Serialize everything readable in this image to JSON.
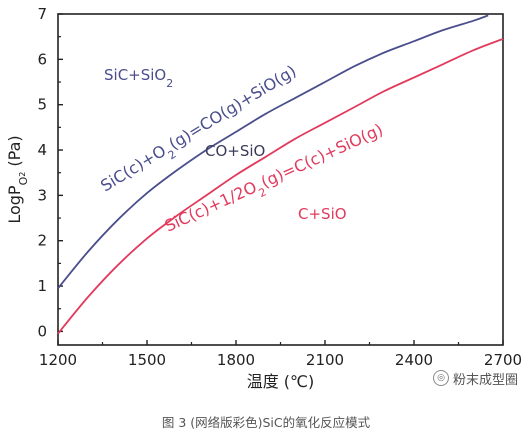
{
  "chart_data": {
    "type": "line",
    "xlabel": "温度 (℃)",
    "ylabel_main": "LogP",
    "ylabel_sub": "O",
    "ylabel_sub2": "2",
    "ylabel_unit": " (Pa)",
    "xlim": [
      1200,
      2700
    ],
    "ylim": [
      -0.3,
      7
    ],
    "x_ticks": [
      1200,
      1500,
      1800,
      2100,
      2400,
      2700
    ],
    "y_ticks": [
      0,
      1,
      2,
      3,
      4,
      5,
      6,
      7
    ],
    "grid": false,
    "series": [
      {
        "name": "SiC(c)+O2(g)=CO(g)+SiO(g)",
        "color": "#4a4e8c",
        "x": [
          1200,
          1300,
          1400,
          1500,
          1600,
          1700,
          1800,
          1900,
          2000,
          2100,
          2200,
          2300,
          2400,
          2500,
          2600,
          2650
        ],
        "y": [
          0.95,
          1.75,
          2.45,
          3.05,
          3.55,
          4.0,
          4.4,
          4.8,
          5.15,
          5.5,
          5.85,
          6.15,
          6.4,
          6.65,
          6.85,
          6.97
        ]
      },
      {
        "name": "SiC(c)+1/2O2(g)=C(c)+SiO(g)",
        "color": "#e23a5c",
        "x": [
          1200,
          1300,
          1400,
          1500,
          1600,
          1700,
          1800,
          1900,
          2000,
          2100,
          2200,
          2300,
          2400,
          2500,
          2600,
          2700
        ],
        "y": [
          -0.05,
          0.75,
          1.45,
          2.05,
          2.55,
          3.0,
          3.45,
          3.85,
          4.25,
          4.6,
          4.95,
          5.3,
          5.6,
          5.9,
          6.2,
          6.45
        ]
      }
    ],
    "curve_labels": [
      {
        "series": 0,
        "parts": [
          {
            "t": "SiC(c)+O",
            "sub": false
          },
          {
            "t": "2",
            "sub": true
          },
          {
            "t": "(g)=CO(g)+SiO(g)",
            "sub": false
          }
        ]
      },
      {
        "series": 1,
        "parts": [
          {
            "t": "SiC(c)+1/2O",
            "sub": false
          },
          {
            "t": "2",
            "sub": true
          },
          {
            "t": "(g)=C(c)+SiO(g)",
            "sub": false
          }
        ]
      }
    ],
    "region_labels": [
      {
        "text": "SiC+SiO",
        "sub": "2",
        "color": "#4a4e8c"
      },
      {
        "text": "CO+SiO",
        "sub": "",
        "color": "#3a3a5a"
      },
      {
        "text": "C+SiO",
        "sub": "",
        "color": "#e23a5c"
      }
    ]
  },
  "watermark": {
    "icon": "wechat-channel-icon",
    "text": "粉末成型圈"
  },
  "caption": "图 3  (网络版彩色)SiC的氧化反应模式"
}
